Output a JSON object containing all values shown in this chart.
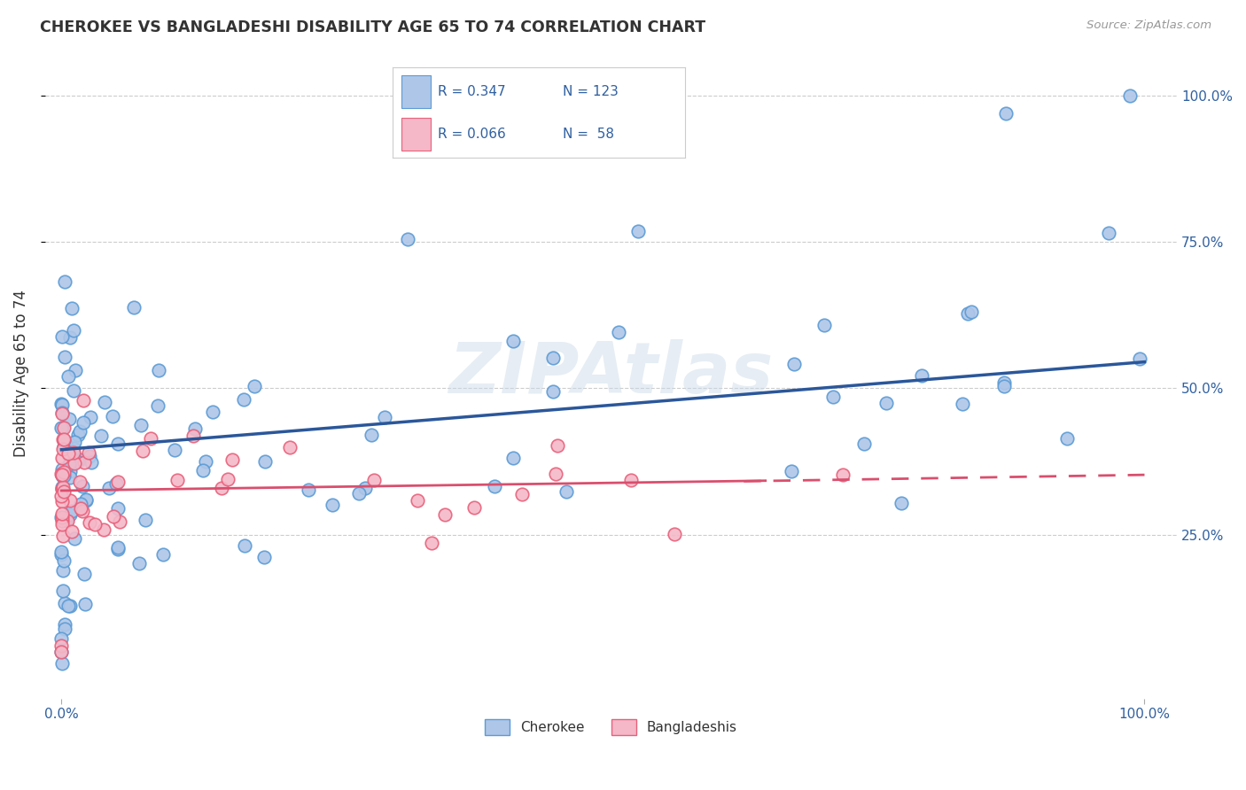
{
  "title": "CHEROKEE VS BANGLADESHI DISABILITY AGE 65 TO 74 CORRELATION CHART",
  "source": "Source: ZipAtlas.com",
  "ylabel": "Disability Age 65 to 74",
  "watermark": "ZIPAtlas",
  "cherokee_color": "#aec6e8",
  "cherokee_edge_color": "#5b9bd5",
  "bangladeshi_color": "#f4b8c8",
  "bangladeshi_edge_color": "#e8607a",
  "cherokee_line_color": "#2b579a",
  "bangladeshi_line_color": "#d94f6e",
  "legend_color": "#3060a0",
  "legend_R1": "0.347",
  "legend_N1": "123",
  "legend_R2": "0.066",
  "legend_N2": "58",
  "grid_color": "#cccccc",
  "tick_label_color": "#3060a0",
  "title_color": "#333333",
  "source_color": "#999999"
}
